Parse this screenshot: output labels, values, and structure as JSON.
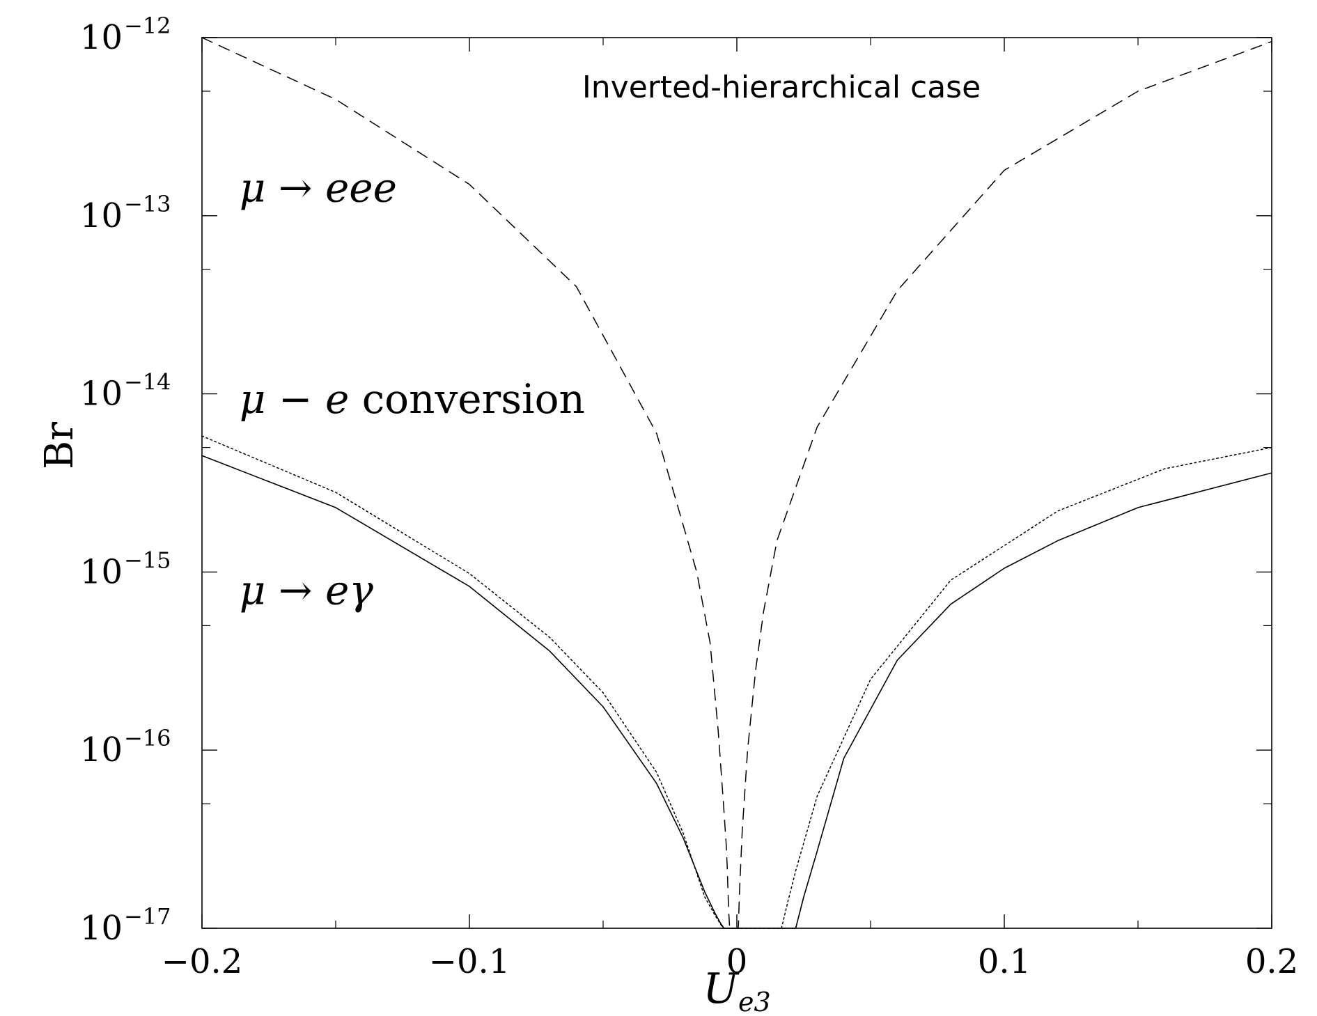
{
  "chart_data": {
    "type": "line",
    "title": "Inverted-hierarchical case",
    "xlabel": "U",
    "xlabel_sub": "e3",
    "ylabel": "Br",
    "xlim": [
      -0.2,
      0.2
    ],
    "ylim": [
      1e-17,
      1e-12
    ],
    "yscale": "log",
    "grid": false,
    "legend": "none",
    "xticks": [
      {
        "value": -0.2,
        "label": "−0.2"
      },
      {
        "value": -0.1,
        "label": "−0.1"
      },
      {
        "value": 0,
        "label": "0"
      },
      {
        "value": 0.1,
        "label": "0.1"
      },
      {
        "value": 0.2,
        "label": "0.2"
      }
    ],
    "yticks": [
      {
        "exp": -12,
        "base": "10",
        "sup": "−12"
      },
      {
        "exp": -13,
        "base": "10",
        "sup": "−13"
      },
      {
        "exp": -14,
        "base": "10",
        "sup": "−14"
      },
      {
        "exp": -15,
        "base": "10",
        "sup": "−15"
      },
      {
        "exp": -16,
        "base": "10",
        "sup": "−16"
      },
      {
        "exp": -17,
        "base": "10",
        "sup": "−17"
      }
    ],
    "series": [
      {
        "style": "dashed",
        "x": [
          -0.2,
          -0.15,
          -0.1,
          -0.06,
          -0.03,
          -0.015,
          -0.01,
          -0.007,
          -0.005,
          -0.004,
          -0.0036,
          -0.0033,
          -0.003,
          -0.0027,
          -0.0026,
          0.0005,
          0.0006,
          0.001,
          0.002,
          0.004,
          0.007,
          0.01,
          0.015,
          0.03,
          0.06,
          0.1,
          0.15,
          0.2
        ],
        "y": [
          1e-12,
          4.5e-13,
          1.5e-13,
          4e-14,
          6e-15,
          1e-15,
          4e-16,
          1.3e-16,
          5e-17,
          3e-17,
          2.2e-17,
          1.6e-17,
          1.2e-17,
          1.02e-17,
          1e-17,
          1e-17,
          1.05e-17,
          1.6e-17,
          3.5e-17,
          1e-16,
          2.8e-16,
          6e-16,
          1.5e-15,
          6.5e-15,
          3.8e-14,
          1.8e-13,
          5e-13,
          9.5e-13
        ]
      },
      {
        "style": "dotted",
        "x": [
          -0.2,
          -0.15,
          -0.1,
          -0.07,
          -0.05,
          -0.03,
          -0.02,
          -0.012,
          -0.008,
          -0.006,
          -0.0053,
          0.0167,
          0.019,
          0.022,
          0.03,
          0.05,
          0.08,
          0.12,
          0.16,
          0.2
        ],
        "y": [
          5.8e-15,
          2.8e-15,
          9.8e-16,
          4.3e-16,
          2.1e-16,
          7.5e-17,
          3.4e-17,
          1.5e-17,
          1.17e-17,
          1.05e-17,
          1e-17,
          1e-17,
          1.4e-17,
          2.1e-17,
          5.5e-17,
          2.5e-16,
          9e-16,
          2.2e-15,
          3.8e-15,
          5e-15
        ]
      },
      {
        "style": "solid",
        "x": [
          -0.2,
          -0.15,
          -0.1,
          -0.07,
          -0.05,
          -0.03,
          -0.02,
          -0.012,
          -0.008,
          -0.006,
          -0.0048,
          -0.0045,
          0.022,
          0.025,
          0.03,
          0.04,
          0.06,
          0.08,
          0.1,
          0.12,
          0.15,
          0.2
        ],
        "y": [
          4.5e-15,
          2.3e-15,
          8.3e-16,
          3.6e-16,
          1.75e-16,
          6.5e-17,
          3.2e-17,
          1.6e-17,
          1.2e-17,
          1.06e-17,
          1e-17,
          1e-17,
          1e-17,
          1.5e-17,
          2.7e-17,
          9e-17,
          3.2e-16,
          6.6e-16,
          1.05e-15,
          1.5e-15,
          2.3e-15,
          3.6e-15
        ]
      }
    ],
    "annotations": [
      {
        "prefix": "μ",
        "arrow": " → ",
        "process": "eee",
        "x": -0.186,
        "y": 1.2e-13
      },
      {
        "prefix": "μ",
        "arrow": " − ",
        "process": "e",
        "suffix": " conversion",
        "x": -0.186,
        "y": 7.8e-15
      },
      {
        "prefix": "μ",
        "arrow": " → ",
        "process": "eγ",
        "x": -0.186,
        "y": 6.6e-16
      }
    ]
  }
}
